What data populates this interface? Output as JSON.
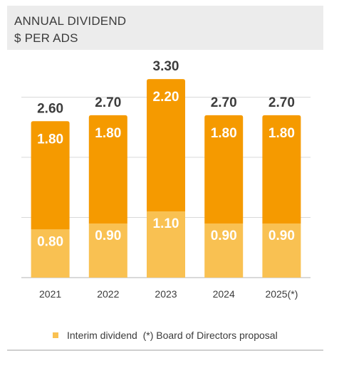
{
  "header": {
    "title": "ANNUAL DIVIDEND",
    "subtitle": "$ PER ADS"
  },
  "legend": {
    "items": [
      {
        "label": "Interim dividend",
        "color": "#f9c152"
      }
    ],
    "note": "(*) Board of Directors proposal"
  },
  "colors": {
    "interim": "#f9c152",
    "final": "#f59a00",
    "total_label": "#3d3d3d",
    "bar_label": "#ffffff",
    "grid": "#d9d9d9",
    "axis": "#b3b3b3",
    "header_bg": "#ececec"
  },
  "chart_data": {
    "type": "bar",
    "stacked": true,
    "categories": [
      "2021",
      "2022",
      "2023",
      "2024",
      "2025(*)"
    ],
    "series": [
      {
        "name": "Interim dividend",
        "values": [
          0.8,
          0.9,
          1.1,
          0.9,
          0.9
        ]
      },
      {
        "values": [
          1.8,
          1.8,
          2.2,
          1.8,
          1.8
        ]
      }
    ],
    "totals": [
      2.6,
      2.7,
      3.3,
      2.7,
      2.7
    ],
    "title": "ANNUAL DIVIDEND",
    "subtitle": "$ PER ADS",
    "xlabel": "",
    "ylabel": "",
    "ylim": [
      0,
      3.3
    ],
    "grid": true,
    "legend_position": "bottom"
  }
}
